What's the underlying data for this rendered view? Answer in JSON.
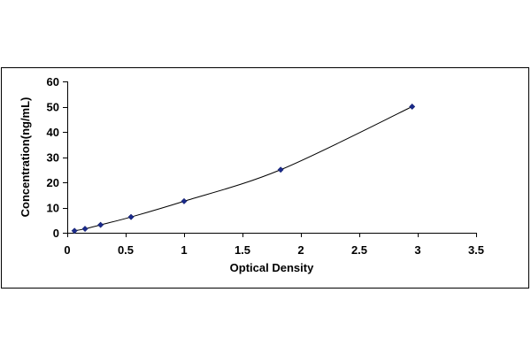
{
  "chart_data": {
    "type": "scatter",
    "xlabel": "Optical Density",
    "ylabel": "Concentration(ng/mL)",
    "xlim": [
      0,
      3.5
    ],
    "ylim": [
      0,
      60
    ],
    "x_ticks": [
      "0",
      "0.5",
      "1",
      "1.5",
      "2",
      "2.5",
      "3",
      "3.5"
    ],
    "y_ticks": [
      "0",
      "10",
      "20",
      "30",
      "40",
      "50",
      "60"
    ],
    "grid": false,
    "legend": "none",
    "series": [
      {
        "marker": "diamond",
        "color": "#1a2a8a",
        "trendline": "smooth",
        "x": [
          0.062,
          0.152,
          0.285,
          0.546,
          1.0,
          1.827,
          2.952
        ],
        "y": [
          0.78,
          1.56,
          3.12,
          6.25,
          12.5,
          25,
          50
        ]
      }
    ]
  }
}
